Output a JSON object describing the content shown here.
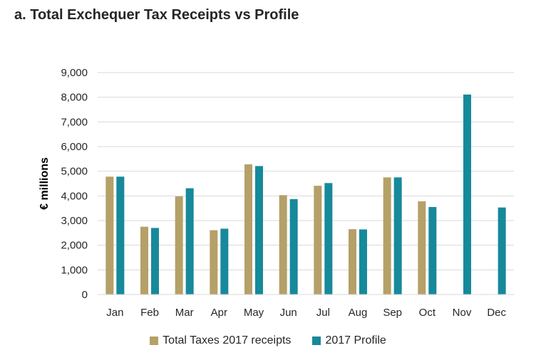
{
  "chart_data": {
    "type": "bar",
    "title": "a. Total Exchequer Tax Receipts vs Profile",
    "xlabel": "",
    "ylabel": "€ millions",
    "ylim": [
      0,
      9000
    ],
    "yticks": [
      0,
      1000,
      2000,
      3000,
      4000,
      5000,
      6000,
      7000,
      8000,
      9000
    ],
    "ytick_labels": [
      "0",
      "1,000",
      "2,000",
      "3,000",
      "4,000",
      "5,000",
      "6,000",
      "7,000",
      "8,000",
      "9,000"
    ],
    "grid": true,
    "legend_position": "bottom",
    "categories": [
      "Jan",
      "Feb",
      "Mar",
      "Apr",
      "May",
      "Jun",
      "Jul",
      "Aug",
      "Sep",
      "Oct",
      "Nov",
      "Dec"
    ],
    "series": [
      {
        "name": "Total Taxes 2017 receipts",
        "color": "#B5A068",
        "values": [
          4780,
          2750,
          3980,
          2610,
          5280,
          4030,
          4410,
          2650,
          4750,
          3780,
          null,
          null
        ]
      },
      {
        "name": "2017 Profile",
        "color": "#16899B",
        "values": [
          4780,
          2700,
          4310,
          2670,
          5210,
          3870,
          4520,
          2640,
          4750,
          3550,
          8110,
          3530
        ]
      }
    ]
  }
}
